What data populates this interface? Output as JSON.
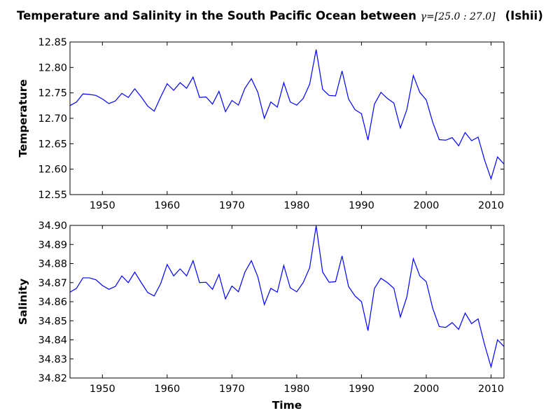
{
  "title": {
    "prefix": "Temperature and Salinity in the South Pacific Ocean between ",
    "math": "γ=[25.0 : 27.0]",
    "suffix": "(Ishii)"
  },
  "chart_data": [
    {
      "type": "line",
      "title": "",
      "xlabel": "",
      "ylabel": "Temperature",
      "xlim": [
        1945,
        2012
      ],
      "ylim": [
        12.55,
        12.85
      ],
      "xticks": [
        1950,
        1960,
        1970,
        1980,
        1990,
        2000,
        2010
      ],
      "yticks": [
        "12.55",
        "12.60",
        "12.65",
        "12.70",
        "12.75",
        "12.80",
        "12.85"
      ],
      "grid": false,
      "series": [
        {
          "color": "#0000ff",
          "x": [
            1945,
            1946,
            1947,
            1948,
            1949,
            1950,
            1951,
            1952,
            1953,
            1954,
            1955,
            1956,
            1957,
            1958,
            1959,
            1960,
            1961,
            1962,
            1963,
            1964,
            1965,
            1966,
            1967,
            1968,
            1969,
            1970,
            1971,
            1972,
            1973,
            1974,
            1975,
            1976,
            1977,
            1978,
            1979,
            1980,
            1981,
            1982,
            1983,
            1984,
            1985,
            1986,
            1987,
            1988,
            1989,
            1990,
            1991,
            1992,
            1993,
            1994,
            1995,
            1996,
            1997,
            1998,
            1999,
            2000,
            2001,
            2002,
            2003,
            2004,
            2005,
            2006,
            2007,
            2008,
            2009,
            2010,
            2011,
            2012
          ],
          "values": [
            12.725,
            12.732,
            12.748,
            12.747,
            12.745,
            12.738,
            12.729,
            12.734,
            12.749,
            12.741,
            12.758,
            12.742,
            12.724,
            12.714,
            12.742,
            12.768,
            12.755,
            12.77,
            12.759,
            12.781,
            12.741,
            12.742,
            12.728,
            12.753,
            12.713,
            12.735,
            12.726,
            12.759,
            12.778,
            12.751,
            12.7,
            12.732,
            12.722,
            12.77,
            12.732,
            12.726,
            12.739,
            12.767,
            12.835,
            12.757,
            12.745,
            12.744,
            12.793,
            12.738,
            12.717,
            12.709,
            12.657,
            12.728,
            12.751,
            12.739,
            12.73,
            12.681,
            12.717,
            12.784,
            12.751,
            12.736,
            12.692,
            12.658,
            12.657,
            12.662,
            12.646,
            12.672,
            12.656,
            12.663,
            12.618,
            12.581,
            12.624,
            12.61
          ]
        }
      ]
    },
    {
      "type": "line",
      "title": "",
      "xlabel": "Time",
      "ylabel": "Salinity",
      "xlim": [
        1945,
        2012
      ],
      "ylim": [
        34.82,
        34.9
      ],
      "xticks": [
        1950,
        1960,
        1970,
        1980,
        1990,
        2000,
        2010
      ],
      "yticks": [
        "34.82",
        "34.83",
        "34.84",
        "34.85",
        "34.86",
        "34.87",
        "34.88",
        "34.89",
        "34.90"
      ],
      "grid": false,
      "series": [
        {
          "color": "#0000ff",
          "x": [
            1945,
            1946,
            1947,
            1948,
            1949,
            1950,
            1951,
            1952,
            1953,
            1954,
            1955,
            1956,
            1957,
            1958,
            1959,
            1960,
            1961,
            1962,
            1963,
            1964,
            1965,
            1966,
            1967,
            1968,
            1969,
            1970,
            1971,
            1972,
            1973,
            1974,
            1975,
            1976,
            1977,
            1978,
            1979,
            1980,
            1981,
            1982,
            1983,
            1984,
            1985,
            1986,
            1987,
            1988,
            1989,
            1990,
            1991,
            1992,
            1993,
            1994,
            1995,
            1996,
            1997,
            1998,
            1999,
            2000,
            2001,
            2002,
            2003,
            2004,
            2005,
            2006,
            2007,
            2008,
            2009,
            2010,
            2011,
            2012
          ],
          "values": [
            34.865,
            34.867,
            34.8725,
            34.8725,
            34.8715,
            34.8685,
            34.8665,
            34.868,
            34.8735,
            34.87,
            34.8755,
            34.87,
            34.8648,
            34.863,
            34.8695,
            34.8795,
            34.8735,
            34.8772,
            34.8735,
            34.8815,
            34.87,
            34.8702,
            34.8665,
            34.8743,
            34.8615,
            34.8682,
            34.8652,
            34.8755,
            34.8815,
            34.873,
            34.8585,
            34.867,
            34.865,
            34.879,
            34.8673,
            34.8652,
            34.87,
            34.8778,
            34.8998,
            34.8755,
            34.8702,
            34.8705,
            34.884,
            34.868,
            34.863,
            34.86,
            34.8448,
            34.867,
            34.8723,
            34.87,
            34.867,
            34.852,
            34.8625,
            34.8825,
            34.8735,
            34.8705,
            34.8565,
            34.847,
            34.8465,
            34.849,
            34.8455,
            34.854,
            34.8485,
            34.851,
            34.8375,
            34.8258,
            34.84,
            34.8365
          ]
        }
      ]
    }
  ]
}
